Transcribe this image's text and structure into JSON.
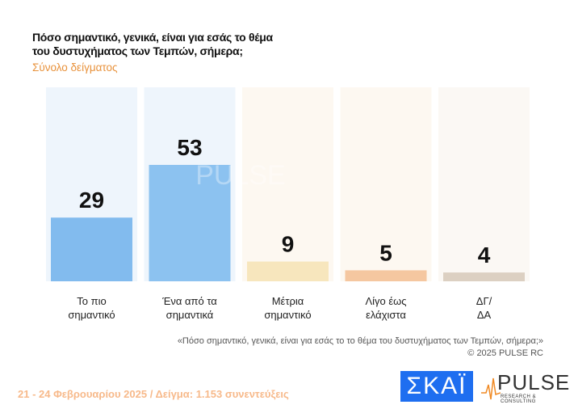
{
  "title_line1": "Πόσο σημαντικό, γενικά, είναι για εσάς το θέμα",
  "title_line2": "του δυστυχήματος των Τεμπών, σήμερα;",
  "subtitle": "Σύνολο δείγματος",
  "chart_data": {
    "type": "bar",
    "categories": [
      [
        "Το πιο",
        "σημαντικό"
      ],
      [
        "Ένα από τα",
        "σημαντικά"
      ],
      [
        "Μέτρια",
        "σημαντικό"
      ],
      [
        "Λίγο έως",
        "ελάχιστα"
      ],
      [
        "ΔΓ/",
        "ΔΑ"
      ]
    ],
    "values": [
      29,
      53,
      9,
      5,
      4
    ],
    "colors": [
      "#82bbee",
      "#8cc2f0",
      "#f7e6bd",
      "#f5c7a0",
      "#dcd0c2"
    ],
    "panel_colors": [
      "#eef5fc",
      "#eef5fc",
      "#fdf8f1",
      "#fdf8f1",
      "#fbf8f4"
    ],
    "ylim": [
      0,
      85
    ],
    "grid": false
  },
  "watermark": "PULSE",
  "note_line1": "«Πόσο σημαντικό, γενικά, είναι για εσάς το το θέμα του δυστυχήματος των Τεμπών, σήμερα;»",
  "note_line2": "©  2025  PULSE RC",
  "footer": "21 - 24 Φεβρουαρίου 2025  /  Δείγμα:  1.153 συνεντεύξεις",
  "logo_skai": "ΣΚΑΪ",
  "logo_pulse": "PULSE",
  "logo_pulse_tag": "RESEARCH & CONSULTING"
}
